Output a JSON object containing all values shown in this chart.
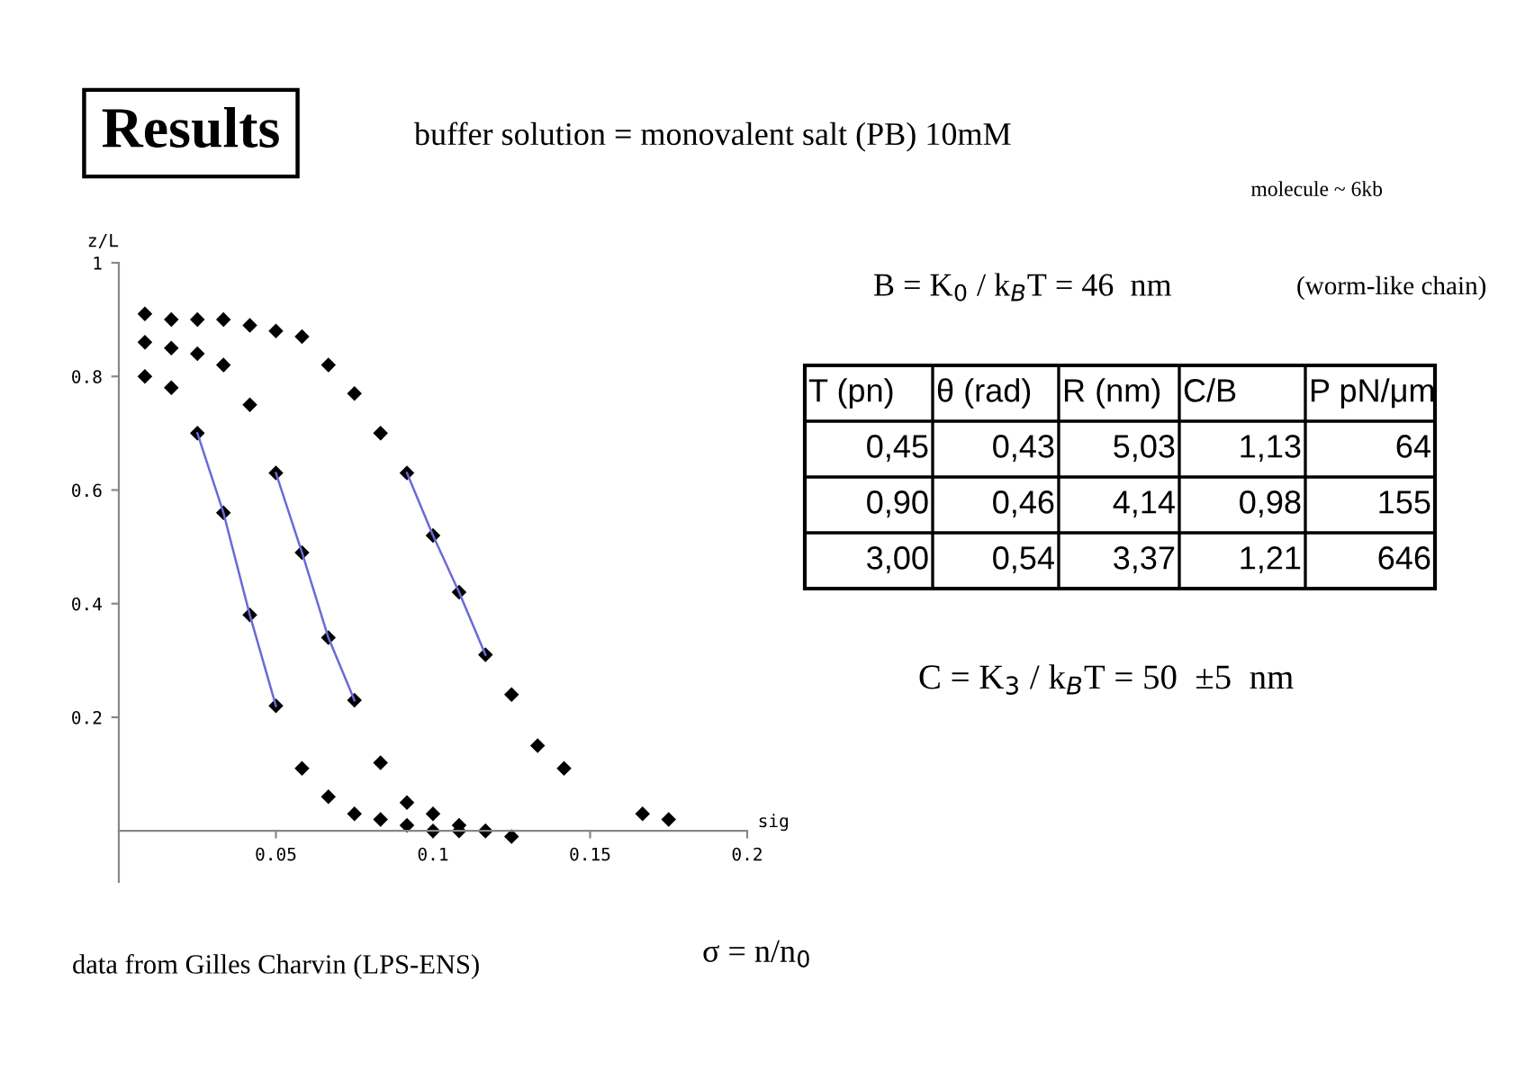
{
  "chart_data": [
    {
      "type": "scatter",
      "title": "Results",
      "subtitle": "buffer solution = monovalent salt (PB) 10mM",
      "xlabel": "sig",
      "ylabel": "z/L",
      "xlim": [
        0,
        0.2
      ],
      "ylim": [
        -0.09,
        1
      ],
      "xticks": [
        0.05,
        0.1,
        0.15,
        0.2
      ],
      "yticks": [
        0.2,
        0.4,
        0.6,
        0.8,
        1
      ],
      "grid": false,
      "legend": false,
      "marker": "diamond",
      "annotations": [
        "data from Gilles Charvin (LPS-ENS)",
        "σ = n/n$_{0}$"
      ],
      "series": [
        {
          "color": "#000000",
          "x": [
            0.0083,
            0.0167,
            0.025,
            0.0333,
            0.0417,
            0.05,
            0.0583,
            0.0667,
            0.075,
            0.0833,
            0.0917,
            0.1,
            0.1083,
            0.1167,
            0.125,
            0.1333,
            0.1417,
            0.1667,
            0.175
          ],
          "values": [
            0.91,
            0.9,
            0.9,
            0.9,
            0.89,
            0.88,
            0.87,
            0.82,
            0.77,
            0.7,
            0.63,
            0.52,
            0.42,
            0.31,
            0.24,
            0.15,
            0.11,
            0.03,
            0.02
          ]
        },
        {
          "color": "#000000",
          "x": [
            0.0083,
            0.0167,
            0.025,
            0.0333,
            0.0417,
            0.05,
            0.0583,
            0.0667,
            0.075,
            0.0833,
            0.0917,
            0.1,
            0.1083,
            0.1167
          ],
          "values": [
            0.86,
            0.85,
            0.84,
            0.82,
            0.75,
            0.63,
            0.49,
            0.34,
            0.23,
            0.12,
            0.05,
            0.03,
            0.01,
            0.0
          ]
        },
        {
          "color": "#000000",
          "x": [
            0.0083,
            0.0167,
            0.025,
            0.0333,
            0.0417,
            0.05,
            0.0583,
            0.0667,
            0.075,
            0.0833,
            0.0917,
            0.1,
            0.1083,
            0.1167,
            0.125
          ],
          "values": [
            0.8,
            0.78,
            0.7,
            0.56,
            0.38,
            0.22,
            0.11,
            0.06,
            0.03,
            0.02,
            0.01,
            0.0,
            0.0,
            0.0,
            -0.01
          ]
        },
        {
          "type": "line",
          "marker": "none",
          "line_style": "solid",
          "color": "#6a6ad6",
          "x": [
            0.025,
            0.0333,
            0.0417,
            0.05
          ],
          "values": [
            0.7,
            0.56,
            0.38,
            0.22
          ]
        },
        {
          "type": "line",
          "marker": "none",
          "line_style": "solid",
          "color": "#6a6ad6",
          "x": [
            0.05,
            0.0583,
            0.0667,
            0.075
          ],
          "values": [
            0.63,
            0.49,
            0.34,
            0.23
          ]
        },
        {
          "type": "line",
          "marker": "none",
          "line_style": "solid",
          "color": "#6a6ad6",
          "x": [
            0.0917,
            0.1,
            0.1083,
            0.1167
          ],
          "values": [
            0.63,
            0.52,
            0.42,
            0.31
          ]
        }
      ]
    },
    {
      "type": "other",
      "annotations": [
        "molecule ~ 6kb",
        "B = K$_{0}$ / k$_{B}$T = 46  nm",
        "(worm-like chain)",
        "C = K$_{3}$ / k$_{B}$T = 50  ±5  nm"
      ],
      "categories": [
        "T (pn)",
        "θ (rad)",
        "R (nm)",
        "C/B",
        "P pN/μm"
      ],
      "cell_labels": [
        [
          "0,45",
          "0,43",
          "5,03",
          "1,13",
          "64"
        ],
        [
          "0,90",
          "0,46",
          "4,14",
          "0,98",
          "155"
        ],
        [
          "3,00",
          "0,54",
          "3,37",
          "1,21",
          "646"
        ]
      ]
    }
  ]
}
